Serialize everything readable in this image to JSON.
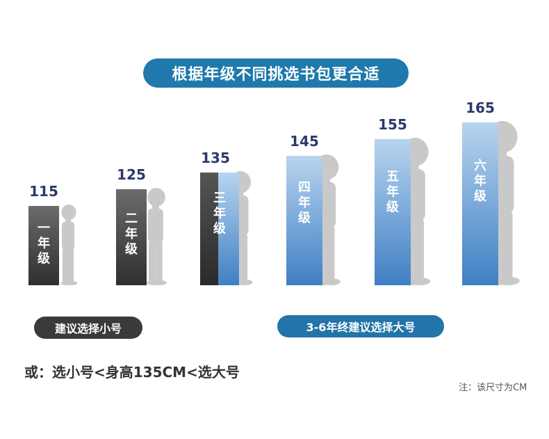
{
  "title": "根据年级不同挑选书包更合适",
  "colors": {
    "title_bg": "#1f79ac",
    "dark_bar_top": "#6b6b6b",
    "dark_bar_bottom": "#2f2f2f",
    "blue_bar_top": "#b8d4ef",
    "blue_bar_bottom": "#3f7fc4",
    "value_text": "#2b3a6b",
    "silhouette": "#c9c9c9",
    "pill_small": "#3a3a3a",
    "pill_large": "#2374a8"
  },
  "chart_data": {
    "type": "bar",
    "categories": [
      "一年级",
      "二年级",
      "三年级",
      "四年级",
      "五年级",
      "六年级"
    ],
    "values": [
      115,
      125,
      135,
      145,
      155,
      165
    ],
    "unit": "CM",
    "data_labels": [
      "115",
      "125",
      "135",
      "145",
      "155",
      "165"
    ]
  },
  "recommendations": {
    "small": "建议选择小号",
    "large": "3-6年终建议选择大号"
  },
  "rule_text": "或：选小号<身高135CM<选大号",
  "unit_note": "注：该尺寸为CM"
}
